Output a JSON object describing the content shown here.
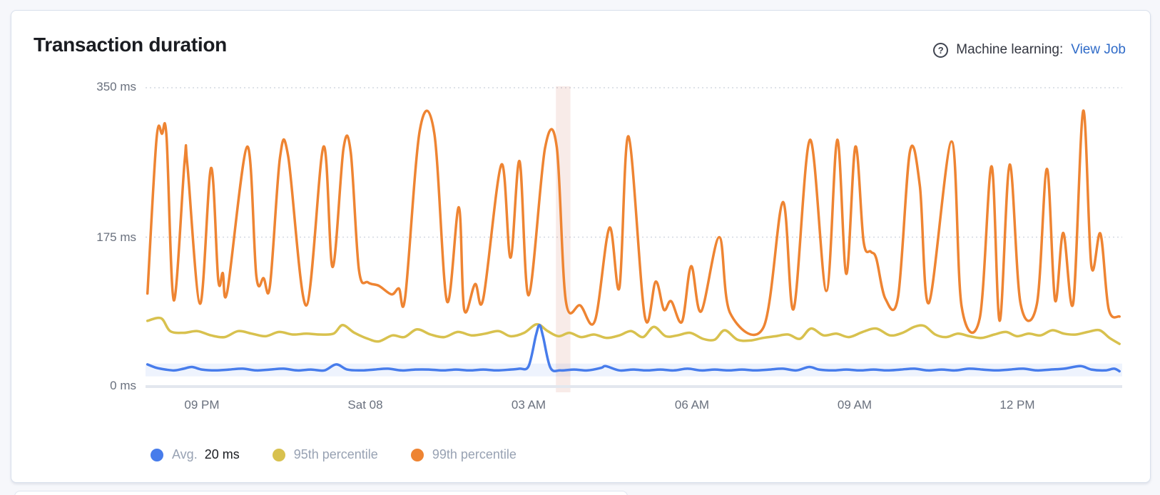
{
  "panel": {
    "title": "Transaction duration",
    "ml_label": "Machine learning:",
    "ml_link": "View Job",
    "help_icon": "?"
  },
  "colors": {
    "page_bg": "#f6f7fb",
    "card_border": "#d9e0ec",
    "title_text": "#1a1c21",
    "axis_text": "#69707d",
    "legend_text": "#98a2b3",
    "link": "#2f6bc8",
    "grid": "#d4d8e1",
    "baseline": "#e3e7ee"
  },
  "chart_data": {
    "type": "line",
    "title": "Transaction duration",
    "unit": "ms",
    "ylim": [
      0,
      350
    ],
    "yticks": [
      {
        "value": 0,
        "label": "0 ms"
      },
      {
        "value": 175,
        "label": "175 ms"
      },
      {
        "value": 350,
        "label": "350 ms"
      }
    ],
    "x_domain_minutes": [
      0,
      1071
    ],
    "xticks": [
      {
        "minutes": 60,
        "label": "09 PM"
      },
      {
        "minutes": 240,
        "label": "Sat 08"
      },
      {
        "minutes": 420,
        "label": "03 AM"
      },
      {
        "minutes": 600,
        "label": "06 AM"
      },
      {
        "minutes": 780,
        "label": "09 AM"
      },
      {
        "minutes": 960,
        "label": "12 PM"
      }
    ],
    "grid": "dotted horizontal",
    "legend_position": "bottom",
    "annotation_band": {
      "from_minutes": 450,
      "to_minutes": 466,
      "color": "#c0492f",
      "opacity": 0.11
    },
    "expected_bounds_band": {
      "min": 12,
      "max": 27,
      "color": "#477ceb",
      "opacity": 0.09
    },
    "series": [
      {
        "name": "Avg.",
        "value_label": "20 ms",
        "color": "#477ceb",
        "points": [
          [
            0,
            26
          ],
          [
            10,
            22
          ],
          [
            20,
            20
          ],
          [
            30,
            19
          ],
          [
            40,
            21
          ],
          [
            49,
            23
          ],
          [
            60,
            20
          ],
          [
            75,
            19
          ],
          [
            90,
            20
          ],
          [
            105,
            21
          ],
          [
            120,
            19
          ],
          [
            135,
            20
          ],
          [
            150,
            21
          ],
          [
            165,
            19
          ],
          [
            180,
            20
          ],
          [
            195,
            19
          ],
          [
            208,
            26
          ],
          [
            220,
            20
          ],
          [
            235,
            19
          ],
          [
            250,
            20
          ],
          [
            265,
            21
          ],
          [
            280,
            19
          ],
          [
            295,
            20
          ],
          [
            310,
            20
          ],
          [
            325,
            19
          ],
          [
            340,
            20
          ],
          [
            355,
            19
          ],
          [
            370,
            20
          ],
          [
            385,
            19
          ],
          [
            400,
            20
          ],
          [
            410,
            21
          ],
          [
            420,
            24
          ],
          [
            428,
            60
          ],
          [
            432,
            72
          ],
          [
            436,
            58
          ],
          [
            444,
            22
          ],
          [
            455,
            19
          ],
          [
            470,
            20
          ],
          [
            485,
            19
          ],
          [
            500,
            22
          ],
          [
            505,
            24
          ],
          [
            520,
            19
          ],
          [
            535,
            20
          ],
          [
            550,
            19
          ],
          [
            565,
            20
          ],
          [
            580,
            19
          ],
          [
            595,
            21
          ],
          [
            610,
            19
          ],
          [
            625,
            20
          ],
          [
            640,
            19
          ],
          [
            655,
            20
          ],
          [
            670,
            19
          ],
          [
            685,
            20
          ],
          [
            700,
            21
          ],
          [
            715,
            19
          ],
          [
            729,
            23
          ],
          [
            740,
            20
          ],
          [
            755,
            19
          ],
          [
            770,
            20
          ],
          [
            785,
            19
          ],
          [
            800,
            20
          ],
          [
            815,
            19
          ],
          [
            830,
            20
          ],
          [
            845,
            21
          ],
          [
            860,
            19
          ],
          [
            875,
            20
          ],
          [
            890,
            19
          ],
          [
            905,
            21
          ],
          [
            920,
            20
          ],
          [
            935,
            19
          ],
          [
            950,
            20
          ],
          [
            965,
            21
          ],
          [
            980,
            19
          ],
          [
            995,
            20
          ],
          [
            1010,
            21
          ],
          [
            1028,
            24
          ],
          [
            1040,
            20
          ],
          [
            1055,
            19
          ],
          [
            1065,
            21
          ],
          [
            1071,
            18
          ]
        ]
      },
      {
        "name": "95th percentile",
        "value_label": "",
        "color": "#d8c14e",
        "points": [
          [
            0,
            77
          ],
          [
            15,
            80
          ],
          [
            25,
            65
          ],
          [
            40,
            63
          ],
          [
            55,
            65
          ],
          [
            70,
            60
          ],
          [
            85,
            58
          ],
          [
            100,
            65
          ],
          [
            115,
            62
          ],
          [
            130,
            59
          ],
          [
            145,
            64
          ],
          [
            160,
            61
          ],
          [
            175,
            62
          ],
          [
            190,
            61
          ],
          [
            205,
            62
          ],
          [
            215,
            72
          ],
          [
            228,
            63
          ],
          [
            243,
            56
          ],
          [
            255,
            53
          ],
          [
            270,
            60
          ],
          [
            283,
            58
          ],
          [
            297,
            67
          ],
          [
            312,
            61
          ],
          [
            327,
            58
          ],
          [
            342,
            64
          ],
          [
            357,
            60
          ],
          [
            372,
            62
          ],
          [
            387,
            65
          ],
          [
            400,
            59
          ],
          [
            415,
            63
          ],
          [
            429,
            73
          ],
          [
            441,
            65
          ],
          [
            453,
            59
          ],
          [
            465,
            63
          ],
          [
            478,
            58
          ],
          [
            492,
            61
          ],
          [
            506,
            57
          ],
          [
            520,
            60
          ],
          [
            533,
            65
          ],
          [
            546,
            58
          ],
          [
            558,
            70
          ],
          [
            571,
            59
          ],
          [
            584,
            60
          ],
          [
            598,
            63
          ],
          [
            612,
            56
          ],
          [
            625,
            55
          ],
          [
            636,
            66
          ],
          [
            650,
            55
          ],
          [
            664,
            54
          ],
          [
            678,
            57
          ],
          [
            692,
            59
          ],
          [
            706,
            61
          ],
          [
            719,
            56
          ],
          [
            731,
            68
          ],
          [
            745,
            60
          ],
          [
            759,
            62
          ],
          [
            773,
            58
          ],
          [
            788,
            64
          ],
          [
            803,
            68
          ],
          [
            818,
            60
          ],
          [
            832,
            63
          ],
          [
            845,
            70
          ],
          [
            856,
            71
          ],
          [
            868,
            61
          ],
          [
            880,
            58
          ],
          [
            893,
            62
          ],
          [
            906,
            59
          ],
          [
            919,
            57
          ],
          [
            933,
            61
          ],
          [
            946,
            64
          ],
          [
            958,
            59
          ],
          [
            971,
            62
          ],
          [
            984,
            60
          ],
          [
            997,
            66
          ],
          [
            1010,
            62
          ],
          [
            1023,
            61
          ],
          [
            1036,
            64
          ],
          [
            1049,
            66
          ],
          [
            1060,
            57
          ],
          [
            1071,
            50
          ]
        ]
      },
      {
        "name": "99th percentile",
        "value_label": "",
        "color": "#ee8432",
        "points": [
          [
            0,
            109
          ],
          [
            10,
            290
          ],
          [
            16,
            296
          ],
          [
            21,
            293
          ],
          [
            29,
            101
          ],
          [
            41,
            265
          ],
          [
            44,
            259
          ],
          [
            58,
            97
          ],
          [
            70,
            256
          ],
          [
            78,
            125
          ],
          [
            83,
            133
          ],
          [
            88,
            112
          ],
          [
            110,
            281
          ],
          [
            120,
            129
          ],
          [
            128,
            127
          ],
          [
            135,
            118
          ],
          [
            146,
            268
          ],
          [
            155,
            270
          ],
          [
            175,
            95
          ],
          [
            194,
            281
          ],
          [
            204,
            140
          ],
          [
            216,
            279
          ],
          [
            224,
            274
          ],
          [
            233,
            137
          ],
          [
            243,
            122
          ],
          [
            255,
            118
          ],
          [
            269,
            108
          ],
          [
            277,
            115
          ],
          [
            284,
            105
          ],
          [
            300,
            300
          ],
          [
            316,
            297
          ],
          [
            330,
            100
          ],
          [
            343,
            210
          ],
          [
            349,
            90
          ],
          [
            361,
            120
          ],
          [
            370,
            103
          ],
          [
            390,
            260
          ],
          [
            400,
            151
          ],
          [
            410,
            264
          ],
          [
            420,
            107
          ],
          [
            438,
            279
          ],
          [
            451,
            280
          ],
          [
            461,
            100
          ],
          [
            477,
            95
          ],
          [
            493,
            77
          ],
          [
            509,
            186
          ],
          [
            520,
            116
          ],
          [
            530,
            293
          ],
          [
            548,
            82
          ],
          [
            560,
            123
          ],
          [
            569,
            90
          ],
          [
            577,
            100
          ],
          [
            589,
            76
          ],
          [
            599,
            141
          ],
          [
            610,
            88
          ],
          [
            630,
            175
          ],
          [
            642,
            86
          ],
          [
            679,
            70
          ],
          [
            700,
            216
          ],
          [
            712,
            91
          ],
          [
            730,
            289
          ],
          [
            748,
            112
          ],
          [
            760,
            289
          ],
          [
            770,
            132
          ],
          [
            780,
            281
          ],
          [
            789,
            170
          ],
          [
            797,
            158
          ],
          [
            803,
            150
          ],
          [
            813,
            103
          ],
          [
            827,
            105
          ],
          [
            840,
            275
          ],
          [
            851,
            235
          ],
          [
            861,
            98
          ],
          [
            886,
            287
          ],
          [
            897,
            94
          ],
          [
            917,
            80
          ],
          [
            930,
            258
          ],
          [
            939,
            77
          ],
          [
            950,
            260
          ],
          [
            962,
            97
          ],
          [
            980,
            97
          ],
          [
            991,
            255
          ],
          [
            1000,
            101
          ],
          [
            1009,
            180
          ],
          [
            1020,
            98
          ],
          [
            1031,
            323
          ],
          [
            1040,
            141
          ],
          [
            1050,
            179
          ],
          [
            1059,
            91
          ],
          [
            1071,
            82
          ]
        ]
      }
    ]
  }
}
